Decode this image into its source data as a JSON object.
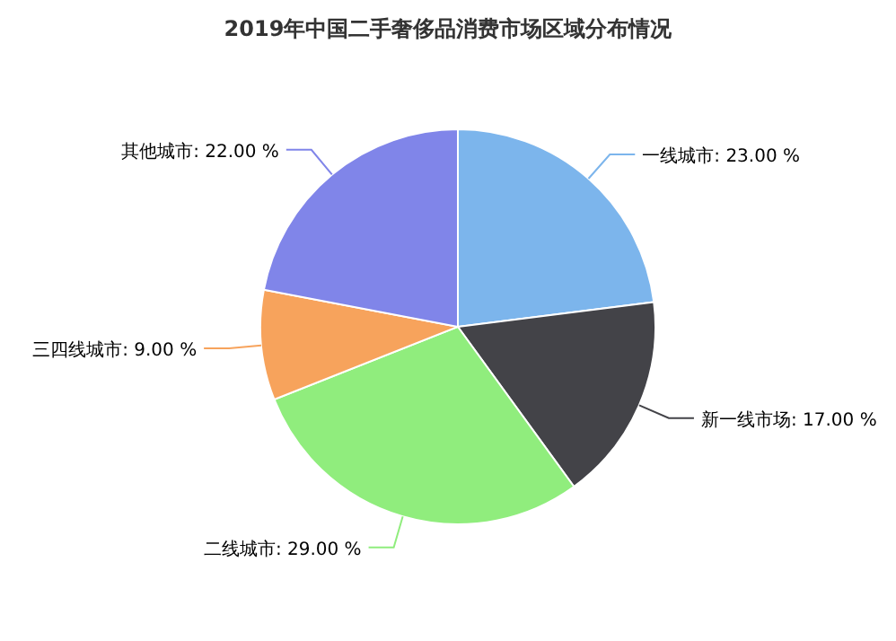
{
  "chart_data": {
    "type": "pie",
    "title": "2019年中国二手奢侈品消费市场区域分布情况",
    "categories": [
      "一线城市",
      "新一线市场",
      "二线城市",
      "三四线城市",
      "其他城市"
    ],
    "values": [
      23,
      17,
      29,
      9,
      22
    ],
    "value_labels": [
      "23.00 %",
      "17.00 %",
      "29.00 %",
      "9.00 %",
      "22.00 %"
    ],
    "colors": [
      "#7cb5ec",
      "#434348",
      "#90ed7d",
      "#f7a35c",
      "#8085e9"
    ],
    "legend": false
  }
}
